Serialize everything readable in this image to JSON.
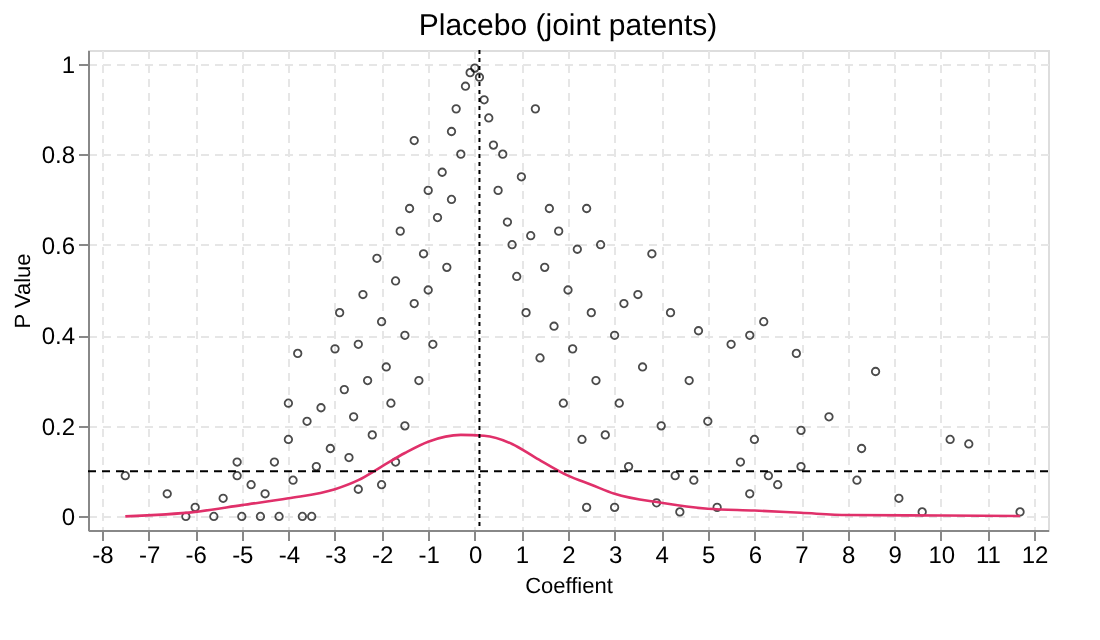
{
  "chart_data": {
    "type": "scatter",
    "title": "Placebo (joint patents)",
    "xlabel": "Coeffient",
    "ylabel": "P Value",
    "xlim": [
      -8.3,
      12.3
    ],
    "xticks": [
      -8,
      -7,
      -6,
      -5,
      -4,
      -3,
      -2,
      -1,
      0,
      1,
      2,
      3,
      4,
      5,
      6,
      7,
      8,
      9,
      10,
      11,
      12
    ],
    "ylim": [
      -0.03,
      1.03
    ],
    "yticks": [
      0,
      0.2,
      0.4,
      0.6,
      0.8,
      1
    ],
    "grid": true,
    "marker": "circle",
    "ref_lines": [
      {
        "axis": "y",
        "value": 0.1,
        "color": "#000000",
        "line_style": "dashed"
      },
      {
        "axis": "x",
        "value": 0.1,
        "color": "#000000",
        "line_style": "dotted"
      }
    ],
    "series": [
      {
        "color": "#000000",
        "x": [
          -7.5,
          -6.6,
          -6.2,
          -6.0,
          -5.6,
          -5.4,
          -5.1,
          -5.1,
          -5.0,
          -4.8,
          -4.6,
          -4.5,
          -4.3,
          -4.2,
          -4.0,
          -4.0,
          -3.9,
          -3.8,
          -3.7,
          -3.6,
          -3.5,
          -3.4,
          -3.3,
          -3.1,
          -3.0,
          -2.9,
          -2.8,
          -2.7,
          -2.6,
          -2.5,
          -2.5,
          -2.4,
          -2.3,
          -2.2,
          -2.1,
          -2.0,
          -2.0,
          -1.9,
          -1.8,
          -1.7,
          -1.7,
          -1.6,
          -1.5,
          -1.5,
          -1.4,
          -1.3,
          -1.3,
          -1.2,
          -1.1,
          -1.0,
          -1.0,
          -0.9,
          -0.8,
          -0.7,
          -0.6,
          -0.5,
          -0.5,
          -0.4,
          -0.3,
          -0.2,
          -0.1,
          0.0,
          0.1,
          0.2,
          0.3,
          0.4,
          0.5,
          0.6,
          0.7,
          0.8,
          0.9,
          1.0,
          1.1,
          1.2,
          1.3,
          1.4,
          1.5,
          1.6,
          1.7,
          1.8,
          1.9,
          2.0,
          2.1,
          2.2,
          2.3,
          2.4,
          2.4,
          2.5,
          2.6,
          2.7,
          2.8,
          3.0,
          3.0,
          3.1,
          3.2,
          3.3,
          3.5,
          3.6,
          3.8,
          3.9,
          4.0,
          4.2,
          4.3,
          4.4,
          4.6,
          4.7,
          4.8,
          5.0,
          5.2,
          5.5,
          5.7,
          5.9,
          5.9,
          6.0,
          6.2,
          6.3,
          6.5,
          6.9,
          7.0,
          7.0,
          7.6,
          8.2,
          8.3,
          8.6,
          9.1,
          9.6,
          10.2,
          10.6,
          11.7
        ],
        "values": [
          0.09,
          0.05,
          0.0,
          0.02,
          0.0,
          0.04,
          0.12,
          0.09,
          0.0,
          0.07,
          0.0,
          0.05,
          0.12,
          0.0,
          0.25,
          0.17,
          0.08,
          0.36,
          0.0,
          0.21,
          0.0,
          0.11,
          0.24,
          0.15,
          0.37,
          0.45,
          0.28,
          0.13,
          0.22,
          0.38,
          0.06,
          0.49,
          0.3,
          0.18,
          0.57,
          0.43,
          0.07,
          0.33,
          0.25,
          0.52,
          0.12,
          0.63,
          0.4,
          0.2,
          0.68,
          0.83,
          0.47,
          0.3,
          0.58,
          0.72,
          0.5,
          0.38,
          0.66,
          0.76,
          0.55,
          0.85,
          0.7,
          0.9,
          0.8,
          0.95,
          0.98,
          0.99,
          0.97,
          0.92,
          0.88,
          0.82,
          0.72,
          0.8,
          0.65,
          0.6,
          0.53,
          0.75,
          0.45,
          0.62,
          0.9,
          0.35,
          0.55,
          0.68,
          0.42,
          0.63,
          0.25,
          0.5,
          0.37,
          0.59,
          0.17,
          0.68,
          0.02,
          0.45,
          0.3,
          0.6,
          0.18,
          0.4,
          0.02,
          0.25,
          0.47,
          0.11,
          0.49,
          0.33,
          0.58,
          0.03,
          0.2,
          0.45,
          0.09,
          0.01,
          0.3,
          0.08,
          0.41,
          0.21,
          0.02,
          0.38,
          0.12,
          0.4,
          0.05,
          0.17,
          0.43,
          0.09,
          0.07,
          0.36,
          0.19,
          0.11,
          0.22,
          0.08,
          0.15,
          0.32,
          0.04,
          0.01,
          0.17,
          0.16,
          0.01
        ]
      },
      {
        "type": "line",
        "marker": "none",
        "color": "#e0306a",
        "x": [
          -7.5,
          -6,
          -5,
          -4,
          -3,
          -2.5,
          -2,
          -1.5,
          -1,
          -0.3,
          0.2,
          0.8,
          1.3,
          2,
          2.5,
          3,
          4,
          5,
          6,
          7,
          8,
          10,
          11.7
        ],
        "values": [
          0.0,
          0.01,
          0.025,
          0.04,
          0.06,
          0.08,
          0.11,
          0.14,
          0.165,
          0.18,
          0.178,
          0.16,
          0.13,
          0.09,
          0.07,
          0.05,
          0.03,
          0.017,
          0.013,
          0.008,
          0.003,
          0.002,
          0.001
        ]
      }
    ]
  }
}
